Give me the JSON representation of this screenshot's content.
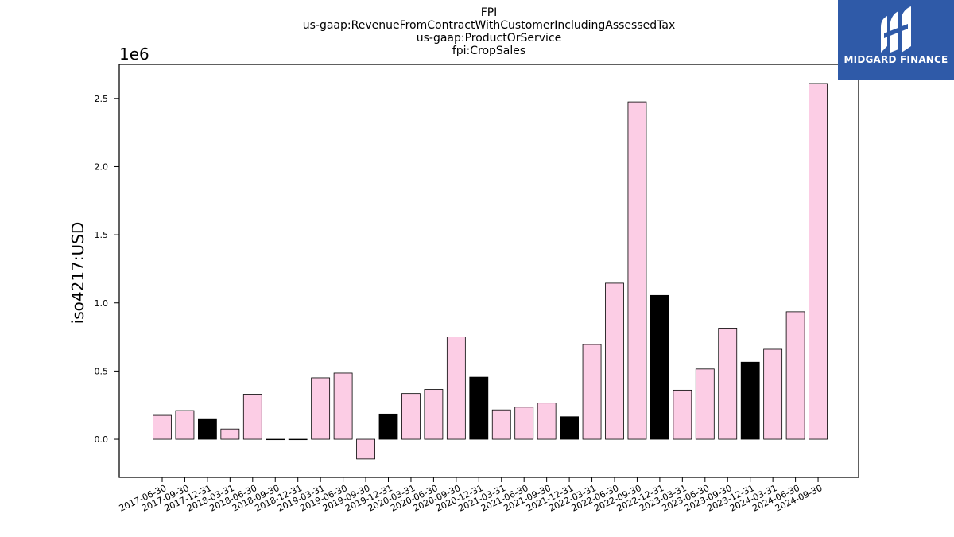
{
  "chart_data": {
    "type": "bar",
    "title_lines": [
      "FPI",
      "us-gaap:RevenueFromContractWithCustomerIncludingAssessedTax",
      "us-gaap:ProductOrService",
      "fpi:CropSales"
    ],
    "ylabel": "iso4217:USD",
    "y_offset_label": "1e6",
    "ylim": [
      -0.28,
      2.75
    ],
    "yticks": [
      0.0,
      0.5,
      1.0,
      1.5,
      2.0,
      2.5
    ],
    "ytick_labels": [
      "0.0",
      "0.5",
      "1.0",
      "1.5",
      "2.0",
      "2.5"
    ],
    "grid": false,
    "categories": [
      "2017-06-30",
      "2017-09-30",
      "2017-12-31",
      "2018-03-31",
      "2018-06-30",
      "2018-09-30",
      "2018-12-31",
      "2019-03-31",
      "2019-06-30",
      "2019-09-30",
      "2019-12-31",
      "2020-03-31",
      "2020-06-30",
      "2020-09-30",
      "2020-12-31",
      "2021-03-31",
      "2021-06-30",
      "2021-09-30",
      "2021-12-31",
      "2022-03-31",
      "2022-06-30",
      "2022-09-30",
      "2022-12-31",
      "2023-03-31",
      "2023-06-30",
      "2023-09-30",
      "2023-12-31",
      "2024-03-31",
      "2024-06-30",
      "2024-09-30"
    ],
    "values": [
      0.175,
      0.21,
      0.145,
      0.075,
      0.33,
      0.0,
      0.0,
      0.45,
      0.485,
      -0.145,
      0.185,
      0.335,
      0.365,
      0.75,
      0.455,
      0.215,
      0.235,
      0.265,
      0.165,
      0.695,
      1.145,
      2.475,
      1.055,
      0.36,
      0.515,
      0.815,
      0.565,
      0.66,
      0.935,
      2.61
    ],
    "highlighted": [
      false,
      false,
      true,
      false,
      false,
      false,
      false,
      false,
      false,
      false,
      true,
      false,
      false,
      false,
      true,
      false,
      false,
      false,
      true,
      false,
      false,
      false,
      true,
      false,
      false,
      false,
      true,
      false,
      false,
      false
    ],
    "colors": {
      "normal": "#fccde5",
      "highlight": "#000000",
      "edge": "#000000"
    }
  },
  "logo": {
    "brand": "MIDGARD FINANCE",
    "icon": "midgard-logo-icon"
  }
}
